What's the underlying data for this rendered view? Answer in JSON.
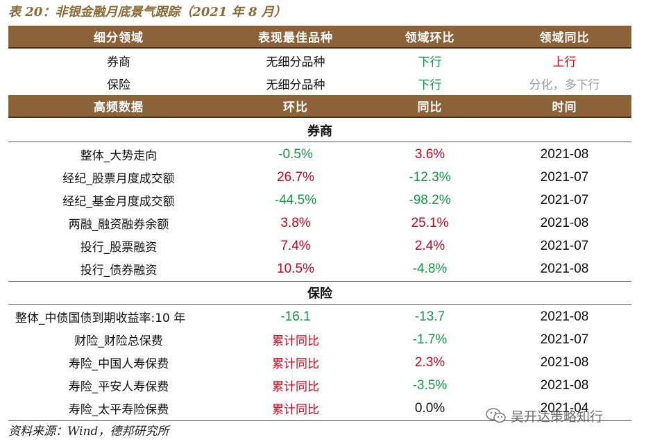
{
  "title": "表 20：非银金融月底景气跟踪（2021 年 8 月）",
  "header1": [
    "细分领域",
    "表现最佳品种",
    "领域环比",
    "领域同比"
  ],
  "sector_rows": [
    {
      "name": "券商",
      "best": "无细分品种",
      "mom": "下行",
      "yoy": "上行",
      "mom_color": "green",
      "yoy_color": "red"
    },
    {
      "name": "保险",
      "best": "无细分品种",
      "mom": "下行",
      "yoy": "分化，多下行",
      "mom_color": "green",
      "yoy_color": "gray"
    }
  ],
  "header2": [
    "高频数据",
    "环比",
    "同比",
    "时间"
  ],
  "sections": [
    {
      "label": "券商",
      "rows": [
        {
          "name": "整体_大势走向",
          "mom": "-0.5%",
          "yoy": "3.6%",
          "time": "2021-08",
          "mom_color": "green",
          "yoy_color": "red"
        },
        {
          "name": "经纪_股票月度成交额",
          "mom": "26.7%",
          "yoy": "-12.3%",
          "time": "2021-07",
          "mom_color": "red",
          "yoy_color": "green"
        },
        {
          "name": "经纪_基金月度成交额",
          "mom": "-44.5%",
          "yoy": "-98.2%",
          "time": "2021-07",
          "mom_color": "green",
          "yoy_color": "green"
        },
        {
          "name": "两融_融资融券余额",
          "mom": "3.8%",
          "yoy": "25.1%",
          "time": "2021-08",
          "mom_color": "red",
          "yoy_color": "red"
        },
        {
          "name": "投行_股票融资",
          "mom": "7.4%",
          "yoy": "2.4%",
          "time": "2021-07",
          "mom_color": "red",
          "yoy_color": "red"
        },
        {
          "name": "投行_债券融资",
          "mom": "10.5%",
          "yoy": "-4.8%",
          "time": "2021-08",
          "mom_color": "red",
          "yoy_color": "green"
        }
      ]
    },
    {
      "label": "保险",
      "rows": [
        {
          "name": "整体_中债国债到期收益率:10 年",
          "mom": "-16.1",
          "yoy": "-13.7",
          "time": "2021-08",
          "mom_color": "green",
          "yoy_color": "green"
        },
        {
          "name": "财险_财险总保费",
          "mom": "累计同比",
          "yoy": "-1.7%",
          "time": "2021-07",
          "mom_color": "red",
          "yoy_color": "green"
        },
        {
          "name": "寿险_中国人寿保费",
          "mom": "累计同比",
          "yoy": "2.3%",
          "time": "2021-08",
          "mom_color": "red",
          "yoy_color": "red"
        },
        {
          "name": "寿险_平安人寿保费",
          "mom": "累计同比",
          "yoy": "-3.5%",
          "time": "2021-08",
          "mom_color": "red",
          "yoy_color": "green"
        },
        {
          "name": "寿险_太平寿险保费",
          "mom": "累计同比",
          "yoy": "0.0%",
          "time": "2021-04",
          "mom_color": "red",
          "yoy_color": "black"
        }
      ]
    }
  ],
  "source": "资料来源：Wind，德邦研究所",
  "watermark": "吴开达策略知行",
  "colors": {
    "header_bg": "#8c6239",
    "title": "#8a6a35",
    "red": "#d0021b",
    "green": "#139a43",
    "gray": "#9a9a9a"
  }
}
